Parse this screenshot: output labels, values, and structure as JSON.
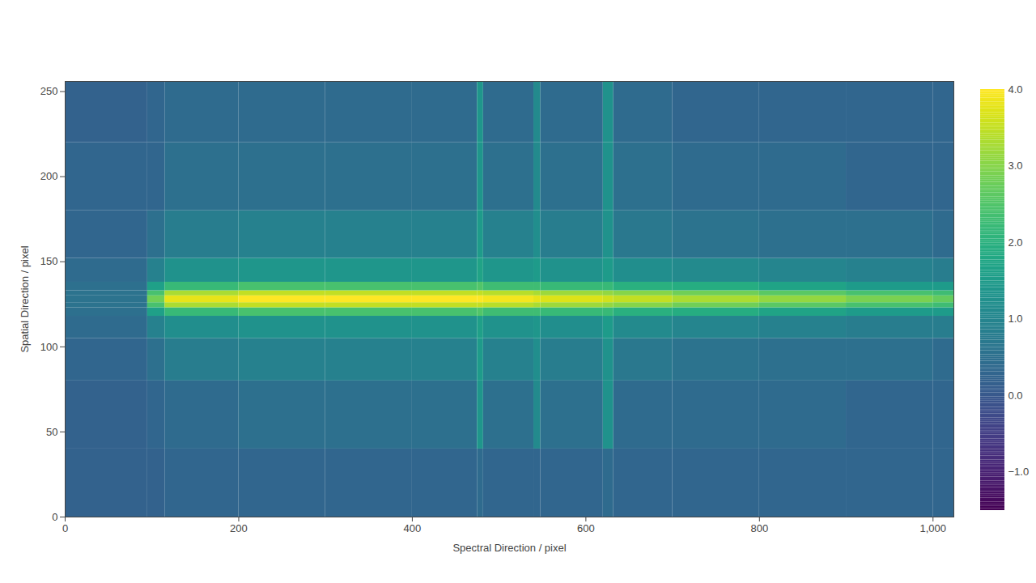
{
  "chart_data": {
    "type": "heatmap",
    "xlabel": "Spectral Direction / pixel",
    "ylabel": "Spatial Direction / pixel",
    "xlim": [
      0,
      1024
    ],
    "xticks": [
      0,
      200,
      400,
      600,
      800,
      1000
    ],
    "ylim": [
      0,
      256
    ],
    "yticks": [
      0,
      50,
      100,
      150,
      200,
      250
    ],
    "grid": false,
    "x_edges": [
      0,
      95,
      115,
      200,
      300,
      400,
      475,
      482,
      540,
      548,
      620,
      632,
      700,
      800,
      900,
      1000,
      1024
    ],
    "y_edges": [
      0,
      40,
      80,
      105,
      118,
      123,
      126,
      128,
      130,
      133,
      138,
      152,
      180,
      220,
      256
    ],
    "z": [
      [
        0.2,
        0.2,
        0.3,
        0.3,
        0.3,
        0.3,
        0.4,
        0.3,
        0.3,
        0.3,
        0.4,
        0.3,
        0.3,
        0.3,
        0.3,
        0.3
      ],
      [
        0.2,
        0.3,
        0.4,
        0.5,
        0.5,
        0.5,
        1.4,
        0.5,
        1.1,
        0.5,
        1.3,
        0.4,
        0.4,
        0.4,
        0.3,
        0.3
      ],
      [
        0.3,
        0.5,
        0.8,
        0.9,
        0.9,
        0.9,
        1.5,
        0.9,
        1.2,
        0.8,
        1.3,
        0.7,
        0.6,
        0.5,
        0.5,
        0.4
      ],
      [
        0.4,
        0.9,
        1.2,
        1.3,
        1.3,
        1.3,
        1.6,
        1.3,
        1.4,
        1.2,
        1.5,
        1.1,
        1.0,
        0.9,
        0.8,
        0.8
      ],
      [
        0.5,
        1.6,
        2.2,
        2.4,
        2.4,
        2.4,
        2.5,
        2.3,
        2.3,
        2.2,
        2.2,
        2.0,
        1.9,
        1.7,
        1.5,
        1.5
      ],
      [
        0.6,
        2.4,
        3.3,
        3.5,
        3.5,
        3.5,
        3.5,
        3.4,
        3.3,
        3.2,
        3.1,
        3.0,
        2.8,
        2.6,
        2.4,
        2.3
      ],
      [
        0.6,
        2.8,
        3.8,
        4.0,
        4.0,
        4.0,
        4.0,
        3.9,
        3.8,
        3.7,
        3.6,
        3.5,
        3.3,
        3.1,
        2.9,
        2.7
      ],
      [
        0.6,
        2.8,
        3.8,
        4.0,
        4.0,
        4.0,
        4.0,
        3.9,
        3.8,
        3.7,
        3.6,
        3.5,
        3.3,
        3.1,
        2.9,
        2.7
      ],
      [
        0.6,
        2.4,
        3.3,
        3.5,
        3.5,
        3.5,
        3.5,
        3.4,
        3.3,
        3.2,
        3.1,
        3.0,
        2.8,
        2.6,
        2.4,
        2.3
      ],
      [
        0.5,
        1.6,
        2.2,
        2.4,
        2.4,
        2.4,
        2.5,
        2.3,
        2.3,
        2.2,
        2.2,
        2.0,
        1.9,
        1.7,
        1.5,
        1.5
      ],
      [
        0.4,
        0.9,
        1.3,
        1.4,
        1.4,
        1.4,
        1.7,
        1.4,
        1.5,
        1.3,
        1.5,
        1.2,
        1.1,
        1.0,
        0.9,
        0.8
      ],
      [
        0.3,
        0.5,
        0.8,
        0.9,
        0.9,
        0.9,
        1.5,
        0.9,
        1.2,
        0.8,
        1.3,
        0.7,
        0.6,
        0.5,
        0.5,
        0.4
      ],
      [
        0.3,
        0.3,
        0.5,
        0.5,
        0.5,
        0.5,
        1.4,
        0.5,
        1.1,
        0.5,
        1.3,
        0.5,
        0.4,
        0.4,
        0.3,
        0.3
      ],
      [
        0.2,
        0.3,
        0.4,
        0.4,
        0.4,
        0.4,
        1.4,
        0.4,
        1.1,
        0.4,
        1.3,
        0.4,
        0.3,
        0.3,
        0.3,
        0.3
      ]
    ],
    "colorbar": {
      "range": [
        -1.5,
        4
      ],
      "ticks": [
        -1,
        0,
        1,
        2,
        3,
        4
      ]
    }
  }
}
